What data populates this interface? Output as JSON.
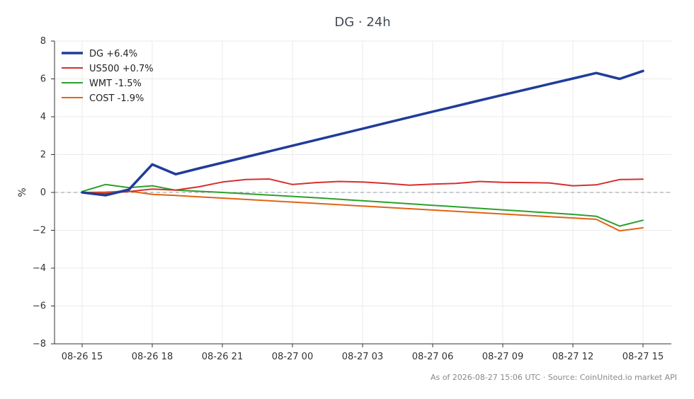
{
  "chart_data": {
    "type": "line",
    "title": "DG · 24h",
    "xlabel": "",
    "ylabel": "%",
    "ylim": [
      -8,
      8
    ],
    "yticks": [
      -8,
      -6,
      -4,
      -2,
      0,
      2,
      4,
      6,
      8
    ],
    "x_tick_labels": [
      "08-26 15",
      "08-26 18",
      "08-26 21",
      "08-27 00",
      "08-27 03",
      "08-27 06",
      "08-27 09",
      "08-27 12",
      "08-27 15"
    ],
    "x": [
      "08-26 15",
      "08-26 16",
      "08-26 17",
      "08-26 18",
      "08-26 19",
      "08-26 20",
      "08-26 21",
      "08-26 22",
      "08-26 23",
      "08-27 00",
      "08-27 01",
      "08-27 02",
      "08-27 03",
      "08-27 04",
      "08-27 05",
      "08-27 06",
      "08-27 07",
      "08-27 08",
      "08-27 09",
      "08-27 10",
      "08-27 11",
      "08-27 12",
      "08-27 13",
      "08-27 14",
      "08-27 15"
    ],
    "grid": true,
    "zero_line": true,
    "legend_position": "top-left",
    "series": [
      {
        "name": "DG +6.4%",
        "color": "#1f3d99",
        "values": [
          0.0,
          -0.15,
          0.15,
          1.48,
          0.96,
          1.27,
          1.57,
          1.87,
          2.17,
          2.47,
          2.77,
          3.07,
          3.37,
          3.67,
          3.97,
          4.27,
          4.56,
          4.86,
          5.15,
          5.44,
          5.73,
          6.02,
          6.31,
          6.0,
          6.42
        ]
      },
      {
        "name": "US500 +0.7%",
        "color": "#d62f2f",
        "values": [
          0.0,
          -0.05,
          0.05,
          0.18,
          0.12,
          0.3,
          0.55,
          0.68,
          0.71,
          0.42,
          0.52,
          0.58,
          0.55,
          0.48,
          0.38,
          0.44,
          0.48,
          0.58,
          0.53,
          0.52,
          0.5,
          0.35,
          0.4,
          0.68,
          0.7
        ]
      },
      {
        "name": "WMT -1.5%",
        "color": "#2ca02c",
        "values": [
          0.05,
          0.42,
          0.25,
          0.35,
          0.12,
          0.06,
          0.0,
          -0.07,
          -0.14,
          -0.21,
          -0.28,
          -0.36,
          -0.44,
          -0.52,
          -0.6,
          -0.68,
          -0.76,
          -0.84,
          -0.92,
          -1.0,
          -1.08,
          -1.16,
          -1.26,
          -1.78,
          -1.47
        ]
      },
      {
        "name": "COST -1.9%",
        "color": "#e06414",
        "values": [
          0.0,
          0.02,
          0.07,
          -0.1,
          -0.16,
          -0.23,
          -0.3,
          -0.37,
          -0.44,
          -0.51,
          -0.58,
          -0.65,
          -0.72,
          -0.79,
          -0.86,
          -0.93,
          -1.0,
          -1.07,
          -1.14,
          -1.21,
          -1.28,
          -1.35,
          -1.42,
          -2.03,
          -1.87
        ]
      }
    ],
    "footer": "As of 2026-08-27 15:06 UTC · Source: CoinUnited.io market API"
  }
}
